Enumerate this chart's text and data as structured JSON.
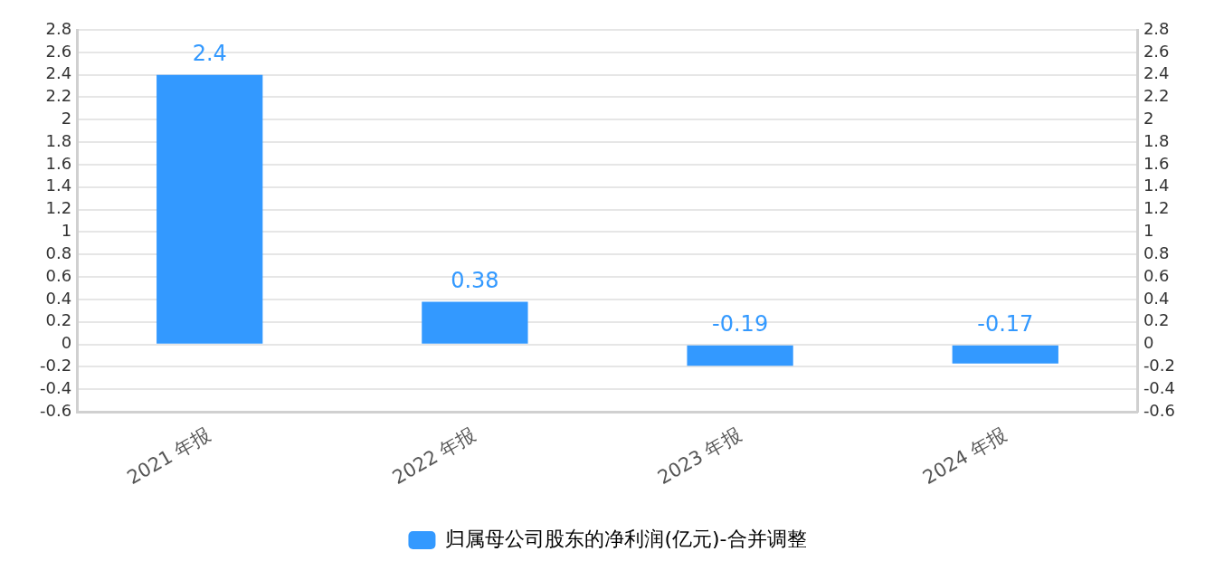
{
  "chart_data": {
    "type": "bar",
    "categories": [
      "2021 年报",
      "2022 年报",
      "2023 年报",
      "2024 年报"
    ],
    "series": [
      {
        "name": "归属母公司股东的净利润(亿元)-合并调整",
        "color": "#3399ff",
        "values": [
          2.4,
          0.38,
          -0.19,
          -0.17
        ]
      }
    ],
    "ylim": [
      -0.6,
      2.8
    ],
    "yticks": [
      -0.6,
      -0.4,
      -0.2,
      0,
      0.2,
      0.4,
      0.6,
      0.8,
      1,
      1.2,
      1.4,
      1.6,
      1.8,
      2,
      2.2,
      2.4,
      2.6,
      2.8
    ],
    "y2lim": [
      -0.6,
      2.8
    ],
    "y2ticks": [
      -0.6,
      -0.4,
      -0.2,
      0,
      0.2,
      0.4,
      0.6,
      0.8,
      1,
      1.2,
      1.4,
      1.6,
      1.8,
      2,
      2.2,
      2.4,
      2.6,
      2.8
    ],
    "grid": "y",
    "legend": "bottom",
    "data_labels": true
  }
}
